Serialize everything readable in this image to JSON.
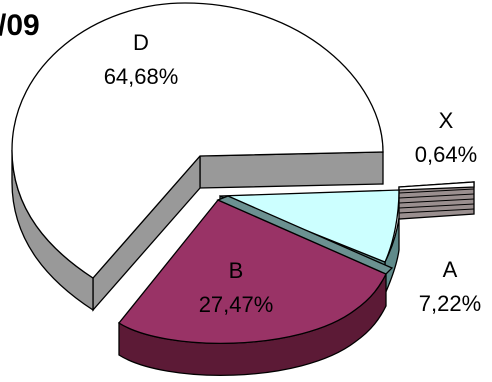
{
  "chart_data": {
    "type": "pie",
    "title": "/09",
    "three_d": true,
    "exploded": true,
    "slices": [
      {
        "name": "D",
        "value": 64.68,
        "label": "64,68%",
        "color": "#ffffff",
        "side_color": "#999999"
      },
      {
        "name": "X",
        "value": 0.64,
        "label": "0,64%",
        "color": "#ffffff",
        "side_color": "#9a8f8f"
      },
      {
        "name": "A",
        "value": 7.22,
        "label": "7,22%",
        "color": "#ccffff",
        "side_color": "#5f8a8a"
      },
      {
        "name": "B",
        "value": 27.47,
        "label": "27,47%",
        "color": "#993366",
        "side_color": "#5c1a36"
      }
    ]
  }
}
